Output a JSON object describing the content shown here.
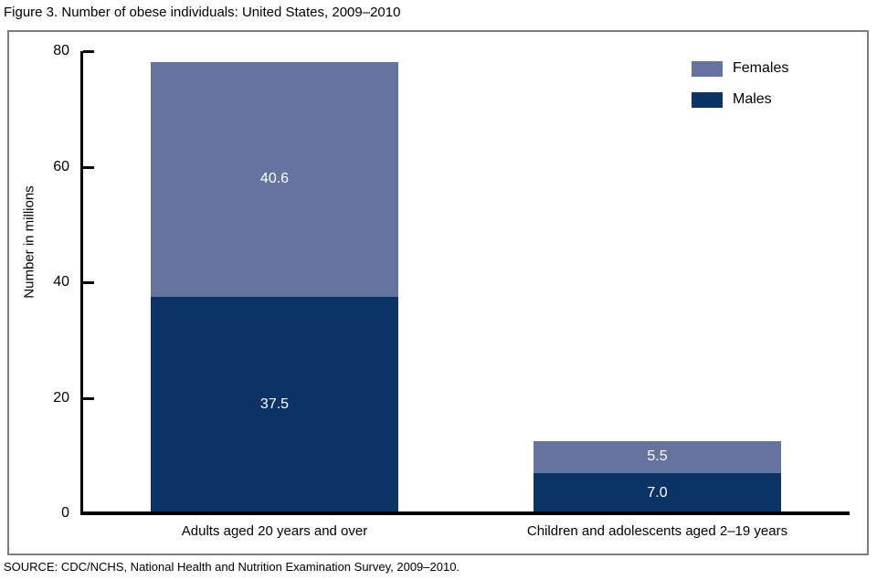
{
  "figure": {
    "title": "Figure 3. Number of obese individuals: United States, 2009–2010",
    "source": "SOURCE: CDC/NCHS, National Health and Nutrition Examination Survey, 2009–2010."
  },
  "chart_data": {
    "type": "bar",
    "stacked": true,
    "title": "Figure 3. Number of obese individuals: United States, 2009–2010",
    "categories": [
      "Adults aged 20 years and over",
      "Children and adolescents aged 2–19 years"
    ],
    "series": [
      {
        "name": "Males",
        "color": "#0C3366",
        "values": [
          37.5,
          7.0
        ]
      },
      {
        "name": "Females",
        "color": "#64749E",
        "values": [
          40.6,
          5.5
        ]
      }
    ],
    "totals": [
      78.1,
      12.5
    ],
    "xlabel": "",
    "ylabel": "Number in millions",
    "ylim": [
      0,
      80
    ],
    "yticks": [
      0,
      20,
      40,
      60,
      80
    ],
    "grid": false,
    "legend_position": "top-right",
    "value_label_color": "#ffffff",
    "axis_color": "#000000",
    "frame_color": "#7d7d7d"
  }
}
